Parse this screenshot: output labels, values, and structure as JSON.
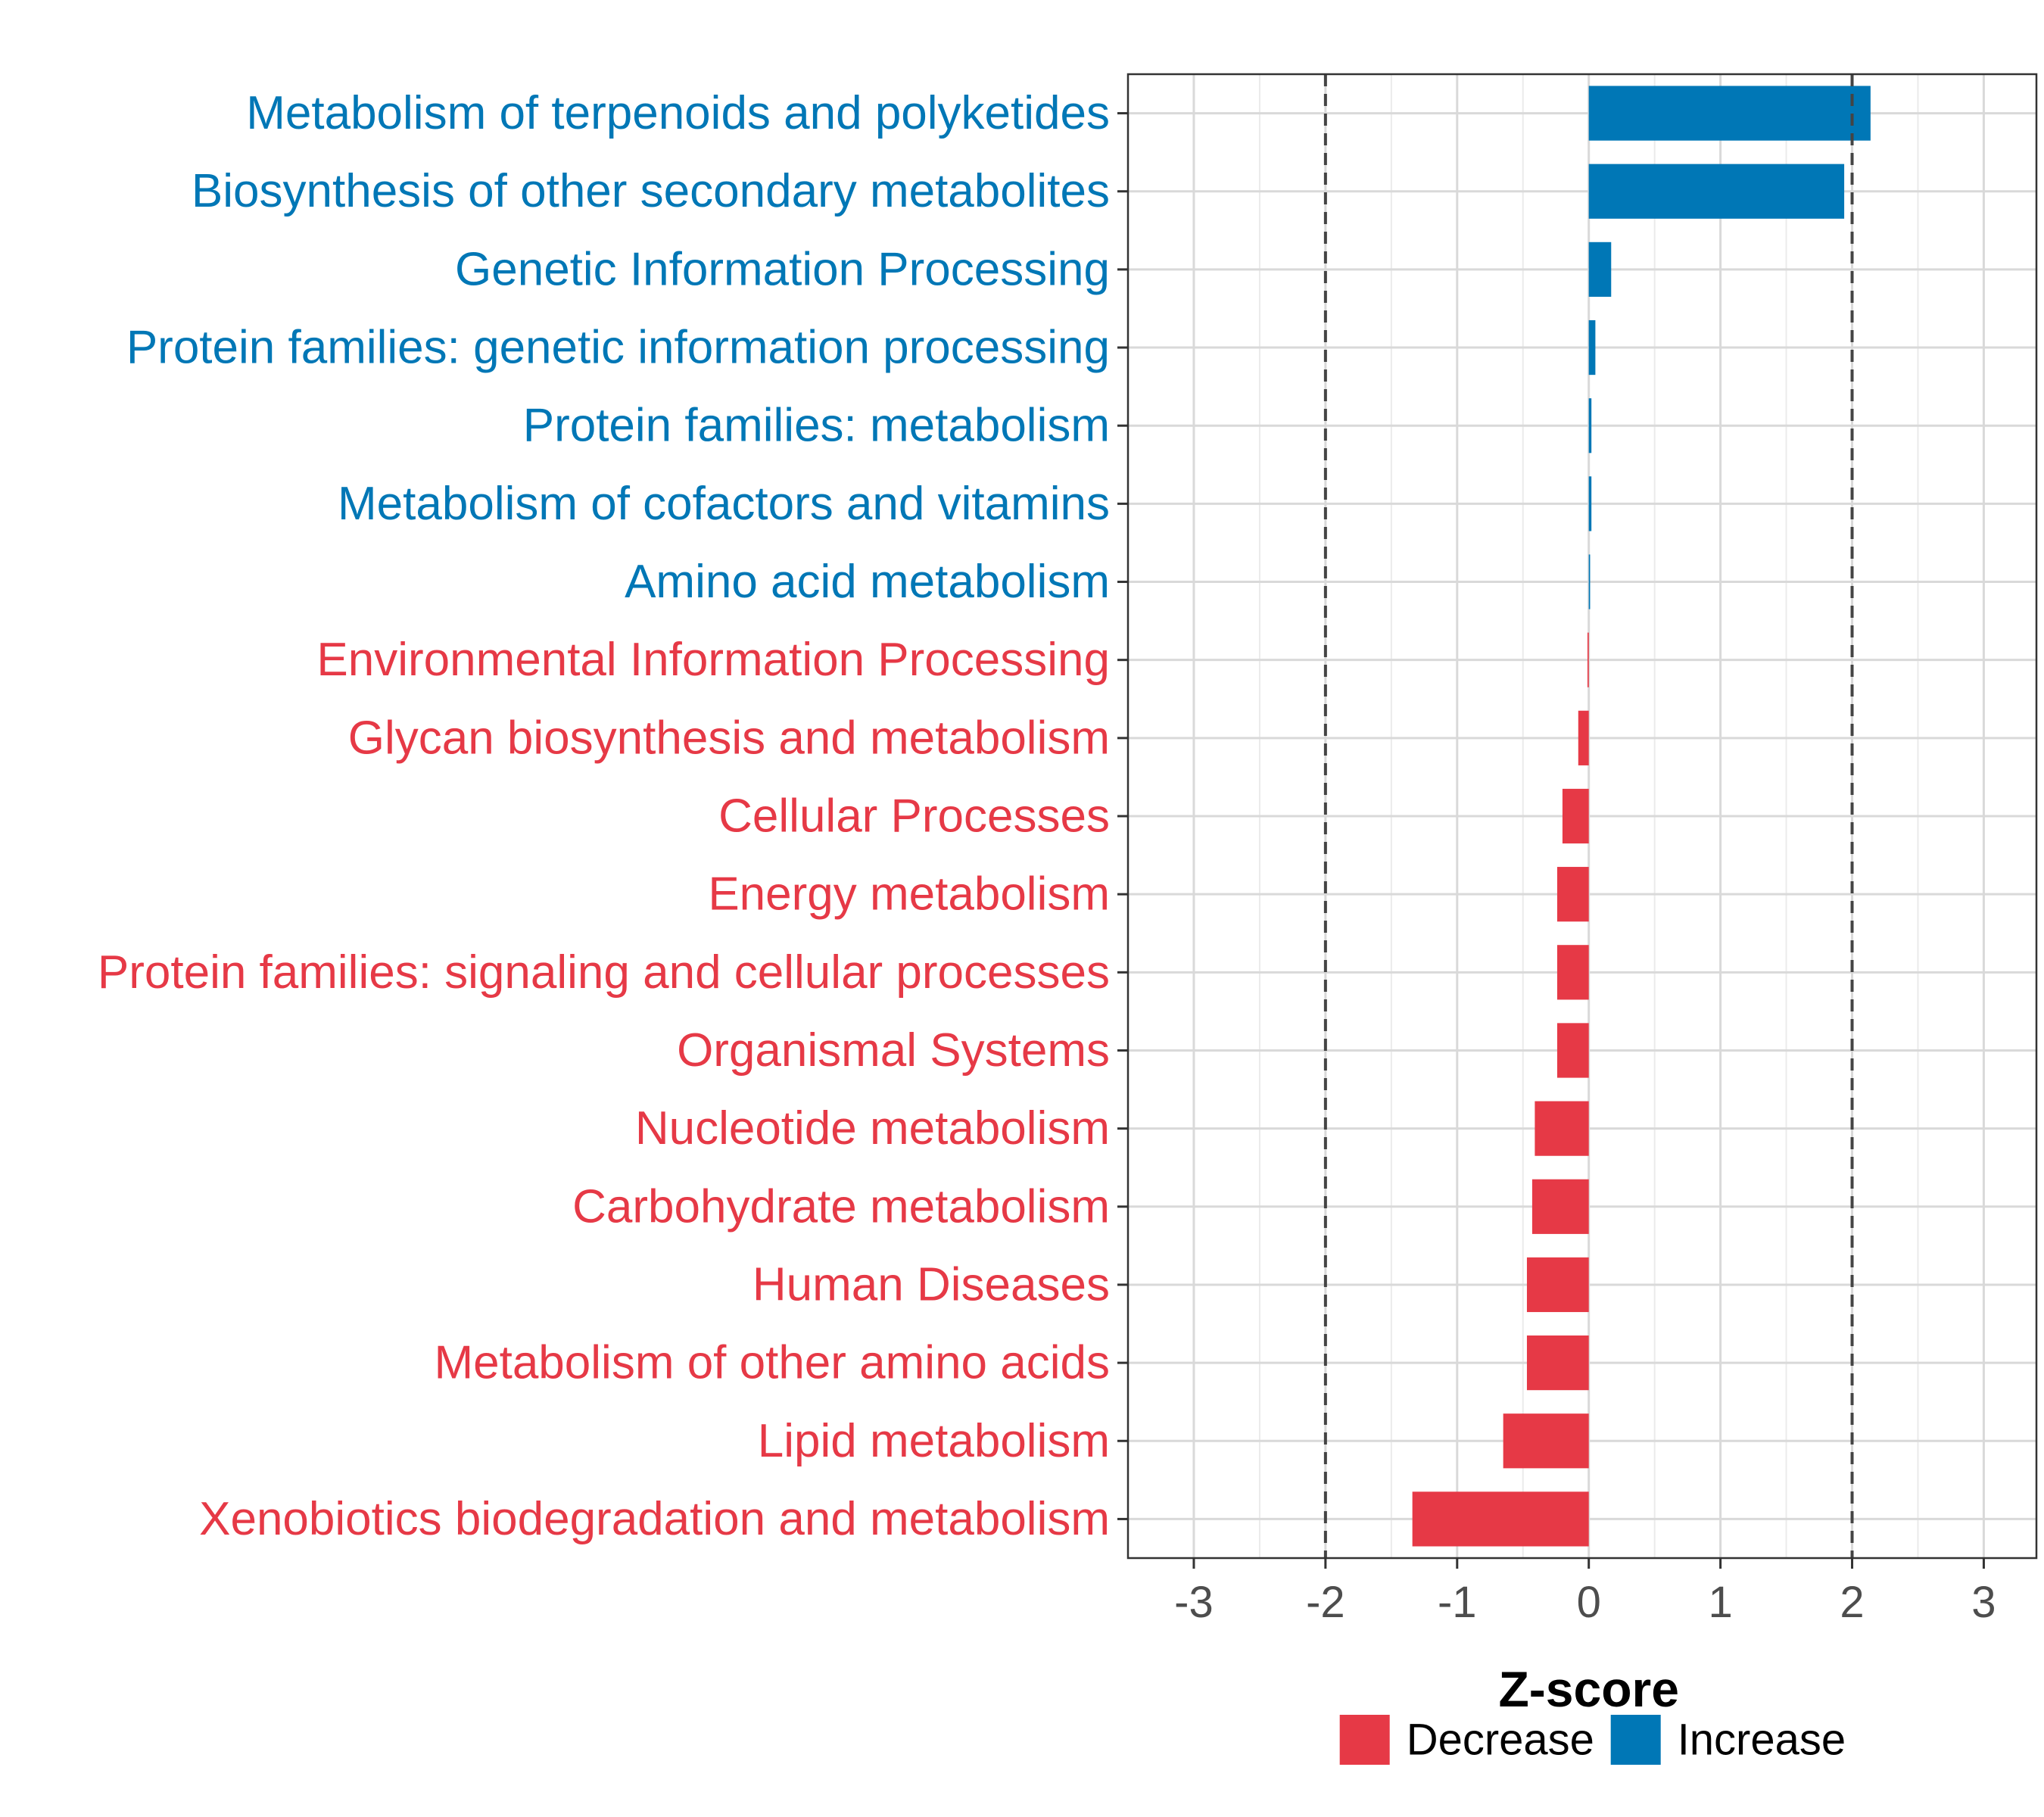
{
  "chart_data": {
    "type": "bar",
    "orientation": "horizontal",
    "title": "",
    "xlabel": "Z-score",
    "ylabel": "",
    "xlim": [
      -3.5,
      3.4
    ],
    "xticks": [
      -3,
      -2,
      -1,
      0,
      1,
      2,
      3
    ],
    "xtick_labels": [
      "-3",
      "-2",
      "-1",
      "0",
      "1",
      "2",
      "3"
    ],
    "reference_lines": [
      -2,
      2
    ],
    "grid": true,
    "legend_position": "bottom",
    "legend": [
      {
        "label": "Decrease",
        "color": "#E63946"
      },
      {
        "label": "Increase",
        "color": "#0077B6"
      }
    ],
    "categories": [
      "Metabolism of terpenoids and polyketides",
      "Biosynthesis of other secondary metabolites",
      "Genetic Information Processing",
      "Protein families: genetic information processing",
      "Protein families: metabolism",
      "Metabolism of cofactors and vitamins",
      "Amino acid metabolism",
      "Environmental Information Processing",
      "Glycan biosynthesis and metabolism",
      "Cellular Processes",
      "Energy metabolism",
      "Protein families: signaling and cellular processes",
      "Organismal Systems",
      "Nucleotide metabolism",
      "Carbohydrate metabolism",
      "Human Diseases",
      "Metabolism of other amino acids",
      "Lipid metabolism",
      "Xenobiotics biodegradation and metabolism"
    ],
    "values": [
      2.14,
      1.94,
      0.17,
      0.05,
      0.02,
      0.02,
      0.01,
      -0.01,
      -0.08,
      -0.2,
      -0.24,
      -0.24,
      -0.24,
      -0.41,
      -0.43,
      -0.47,
      -0.47,
      -0.65,
      -1.34
    ],
    "groups": [
      "Increase",
      "Increase",
      "Increase",
      "Increase",
      "Increase",
      "Increase",
      "Increase",
      "Decrease",
      "Decrease",
      "Decrease",
      "Decrease",
      "Decrease",
      "Decrease",
      "Decrease",
      "Decrease",
      "Decrease",
      "Decrease",
      "Decrease",
      "Decrease"
    ]
  }
}
